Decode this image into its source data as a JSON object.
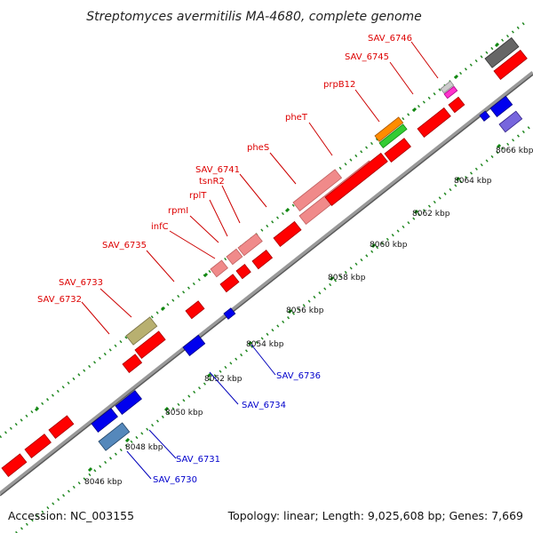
{
  "title": "Streptomyces avermitilis MA-4680, complete genome",
  "footer": {
    "accession": "Accession: NC_003155",
    "summary": "Topology: linear; Length: 9,025,608 bp; Genes: 7,669"
  },
  "axis": {
    "ticks": [
      "8046 kbp",
      "8048 kbp",
      "8050 kbp",
      "8052 kbp",
      "8054 kbp",
      "8056 kbp",
      "8058 kbp",
      "8060 kbp",
      "8062 kbp",
      "8064 kbp",
      "8066 kbp"
    ]
  },
  "labels_forward": [
    "SAV_6732",
    "SAV_6733",
    "SAV_6735",
    "infC",
    "rpmI",
    "rplT",
    "tsnR2",
    "SAV_6741",
    "pheS",
    "pheT",
    "prpB12",
    "SAV_6745",
    "SAV_6746"
  ],
  "labels_reverse": [
    "SAV_6730",
    "SAV_6731",
    "SAV_6734",
    "SAV_6736"
  ],
  "colors": {
    "forward_label": "#dd0000",
    "reverse_label": "#0000cc",
    "forward_gene": "#ff0000",
    "reverse_gene": "#0000ee",
    "rna": "#f08a8a",
    "backbone": "#999999",
    "dots": "#228822"
  }
}
